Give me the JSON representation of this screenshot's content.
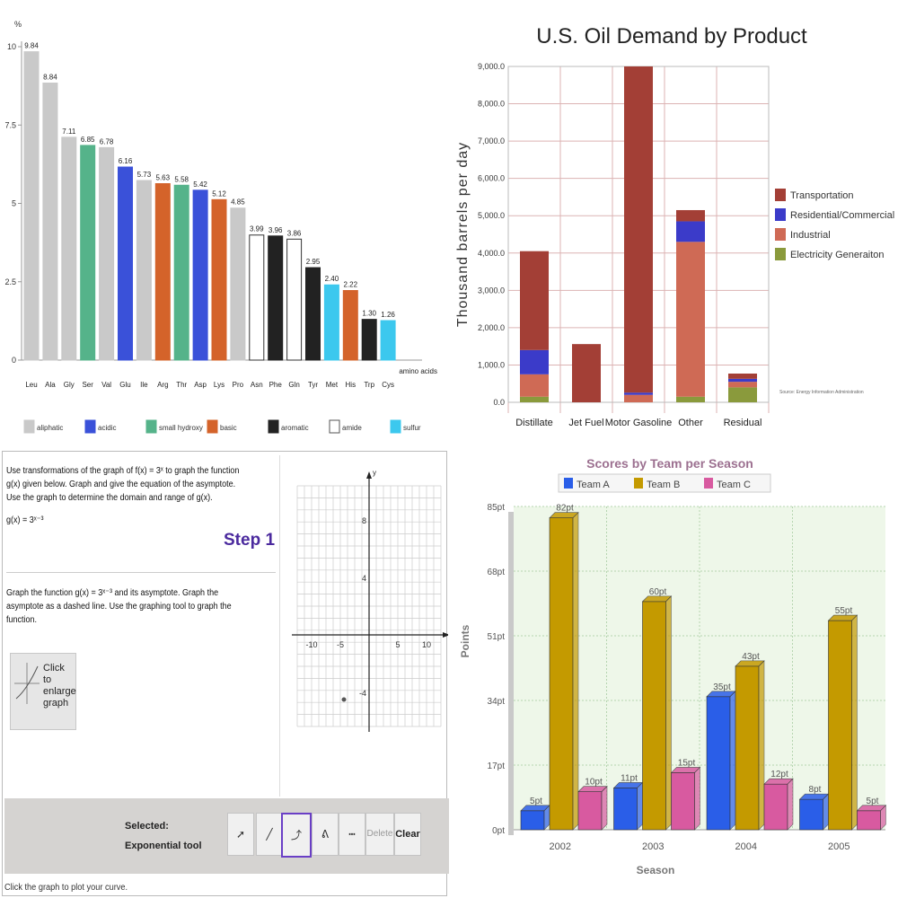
{
  "colors": {
    "aliphatic": "#c9c9c9",
    "acidic": "#3a51d9",
    "small_hydroxy": "#55b38a",
    "basic": "#d4632a",
    "aromatic": "#222222",
    "amide": "#ffffff",
    "sulfur": "#3cc8ee"
  },
  "chart_data": [
    {
      "type": "bar",
      "title": "",
      "ylabel": "%",
      "xlabel": "amino acids",
      "ylim": [
        0,
        10
      ],
      "yticks": [
        "0",
        "2.5",
        "5",
        "7.5",
        "10"
      ],
      "categories": [
        "Leu",
        "Ala",
        "Gly",
        "Ser",
        "Val",
        "Glu",
        "Ile",
        "Arg",
        "Thr",
        "Asp",
        "Lys",
        "Pro",
        "Asn",
        "Phe",
        "Gln",
        "Tyr",
        "Met",
        "His",
        "Trp",
        "Cys"
      ],
      "values": [
        9.84,
        8.84,
        7.11,
        6.85,
        6.78,
        6.16,
        5.73,
        5.63,
        5.58,
        5.42,
        5.12,
        4.85,
        3.99,
        3.96,
        3.86,
        2.95,
        2.4,
        2.22,
        1.3,
        1.26
      ],
      "value_labels": [
        "9.84",
        "8.84",
        "7.11",
        "6.85",
        "6.78",
        "6.16",
        "5.73",
        "5.63",
        "5.58",
        "5.42",
        "5.12",
        "4.85",
        "3.99",
        "3.96",
        "3.86",
        "2.95",
        "2.40",
        "2.22",
        "1.30",
        "1.26"
      ],
      "groups": [
        "aliphatic",
        "aliphatic",
        "aliphatic",
        "small_hydroxy",
        "aliphatic",
        "acidic",
        "aliphatic",
        "basic",
        "small_hydroxy",
        "acidic",
        "basic",
        "aliphatic",
        "amide",
        "aromatic",
        "amide",
        "aromatic",
        "sulfur",
        "basic",
        "aromatic",
        "sulfur"
      ],
      "legend": [
        {
          "key": "aliphatic",
          "label": "aliphatic"
        },
        {
          "key": "acidic",
          "label": "acidic"
        },
        {
          "key": "small_hydroxy",
          "label": "small hydroxy"
        },
        {
          "key": "basic",
          "label": "basic"
        },
        {
          "key": "aromatic",
          "label": "aromatic"
        },
        {
          "key": "amide",
          "label": "amide"
        },
        {
          "key": "sulfur",
          "label": "sulfur"
        }
      ]
    },
    {
      "type": "bar",
      "stacked": true,
      "title": "U.S. Oil Demand by Product",
      "ylabel": "Thousand barrels per day",
      "ylim": [
        0,
        9000
      ],
      "yticks": [
        "0.0",
        "1,000.0",
        "2,000.0",
        "3,000.0",
        "4,000.0",
        "5,000.0",
        "6,000.0",
        "7,000.0",
        "8,000.0",
        "9,000.0"
      ],
      "categories": [
        "Distillate",
        "Jet Fuel",
        "Motor Gasoline",
        "Other",
        "Residual"
      ],
      "series": [
        {
          "name": "Electricity Generation",
          "color": "#8a9a3c",
          "values": [
            150,
            0,
            0,
            150,
            400
          ]
        },
        {
          "name": "Industrial",
          "color": "#cf6a55",
          "values": [
            600,
            0,
            200,
            4150,
            150
          ]
        },
        {
          "name": "Residential/Commercial",
          "color": "#3b3bc9",
          "values": [
            650,
            0,
            60,
            550,
            80
          ]
        },
        {
          "name": "Transportation",
          "color": "#a33f36",
          "values": [
            2650,
            1560,
            8740,
            300,
            140
          ]
        }
      ],
      "legend_order": [
        "Transportation",
        "Residential/Commercial",
        "Industrial",
        "Electricity Generaiton"
      ],
      "source": "Source: Energy Information Administration"
    },
    {
      "type": "bar",
      "title": "Scores by Team per Season",
      "xlabel": "Season",
      "ylabel": "Points",
      "ylim": [
        0,
        85
      ],
      "yticks": [
        "0pt",
        "17pt",
        "34pt",
        "51pt",
        "68pt",
        "85pt"
      ],
      "categories": [
        "2002",
        "2003",
        "2004",
        "2005"
      ],
      "series": [
        {
          "name": "Team A",
          "color": "#2a5ee8",
          "values": [
            5,
            11,
            35,
            8
          ],
          "labels": [
            "5pt",
            "11pt",
            "35pt",
            "8pt"
          ]
        },
        {
          "name": "Team B",
          "color": "#c49a00",
          "values": [
            82,
            60,
            43,
            55
          ],
          "labels": [
            "82pt",
            "60pt",
            "43pt",
            "55pt"
          ]
        },
        {
          "name": "Team C",
          "color": "#d85aa0",
          "values": [
            10,
            15,
            12,
            5
          ],
          "labels": [
            "10pt",
            "15pt",
            "12pt",
            "5pt"
          ]
        }
      ],
      "legend_labels": [
        "Team A",
        "Team B",
        "Team C"
      ]
    }
  ],
  "tutor": {
    "problem": "Use transformations of the graph of f(x) = 3ˣ to graph the function g(x) given below. Graph and give the equation of the asymptote. Use the graph to determine the domain and range of g(x).",
    "function": "g(x) = 3ˣ⁻³",
    "step": "Step 1",
    "instruction": "Graph the function g(x) = 3ˣ⁻³ and its asymptote. Graph the asymptote as a dashed line. Use the graphing tool to graph the function.",
    "enlarge": "Click to enlarge graph",
    "selected_label": "Selected:",
    "selected_tool": "Exponential tool",
    "delete_label": "Delete",
    "clear_label": "Clear",
    "footer": "Click the graph to plot your curve.",
    "axis_ticks": {
      "x": [
        "-10",
        "-5",
        "5",
        "10"
      ],
      "y": [
        "8",
        "4",
        "-4",
        "-8"
      ]
    },
    "x_axis_label": "x",
    "y_axis_label": "y"
  }
}
